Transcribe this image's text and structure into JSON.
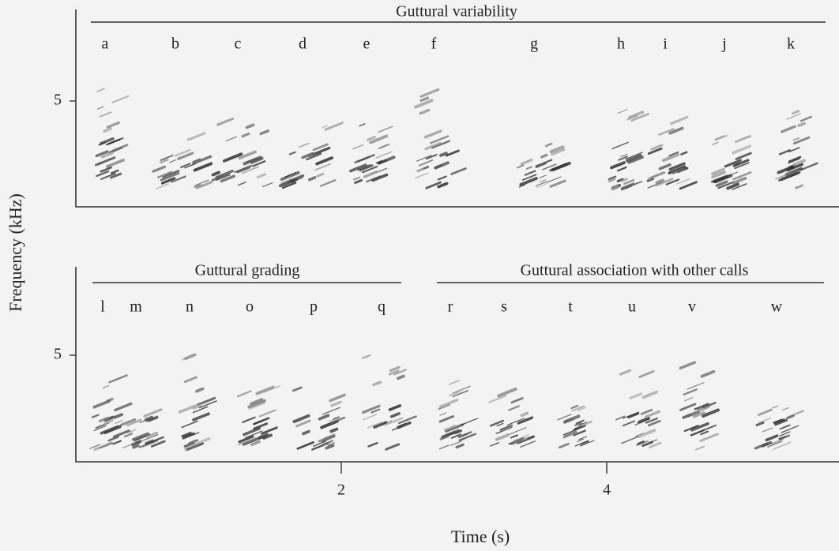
{
  "figure": {
    "y_label": "Frequency (kHz)",
    "x_label": "Time (s)",
    "x_ticks": [
      "2",
      "4"
    ],
    "panels": [
      {
        "y_ticks": [
          "5"
        ],
        "groups": [
          {
            "title": "Guttural variability",
            "labels": [
              "a",
              "b",
              "c",
              "d",
              "e",
              "f",
              "g",
              "h",
              "i",
              "j",
              "k"
            ]
          }
        ]
      },
      {
        "y_ticks": [
          "5"
        ],
        "groups": [
          {
            "title": "Guttural grading",
            "labels": [
              "l",
              "m",
              "n",
              "o",
              "p",
              "q"
            ]
          },
          {
            "title": "Guttural association with other calls",
            "labels": [
              "r",
              "s",
              "t",
              "u",
              "v",
              "w"
            ]
          }
        ]
      }
    ]
  }
}
